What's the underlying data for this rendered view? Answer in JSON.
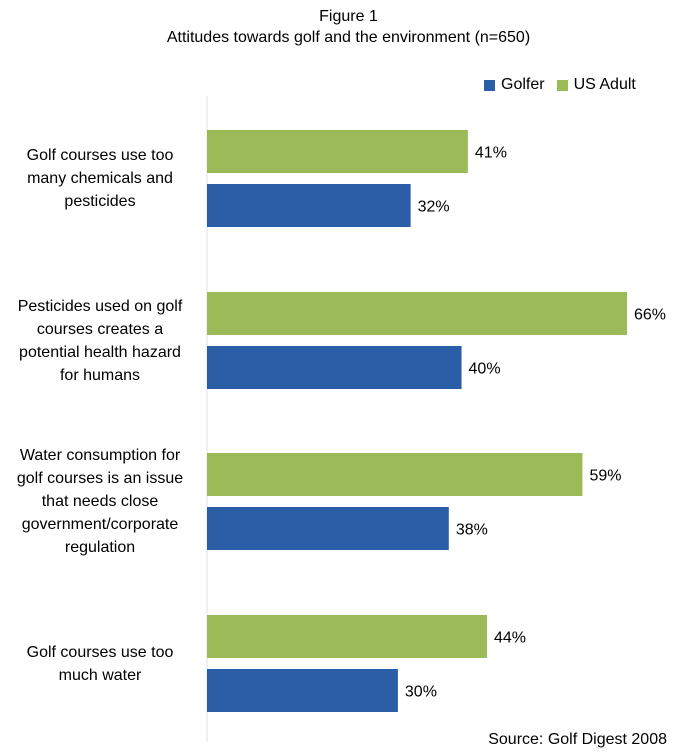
{
  "figure_label": "Figure 1",
  "title": "Attitudes towards golf and the environment (n=650)",
  "source": "Source: Golf Digest 2008",
  "colors": {
    "golfer": "#2b5ea6",
    "us_adult": "#9bbb59",
    "axis": "#e0e0e0"
  },
  "chart_data": {
    "type": "bar",
    "orientation": "horizontal",
    "title": "Attitudes towards golf and the environment (n=650)",
    "categories": [
      [
        "Golf courses use too",
        "many chemicals and",
        "pesticides"
      ],
      [
        "Pesticides used on golf",
        "courses creates a",
        "potential health hazard",
        "for humans"
      ],
      [
        "Water consumption for",
        "golf courses is an issue",
        "that needs close",
        "government/corporate",
        "regulation"
      ],
      [
        "Golf courses use too",
        "much water"
      ]
    ],
    "series": [
      {
        "name": "US Adult",
        "values": [
          41,
          66,
          59,
          44
        ],
        "labels": [
          "41%",
          "66%",
          "59%",
          "44%"
        ]
      },
      {
        "name": "Golfer",
        "values": [
          32,
          40,
          38,
          30
        ],
        "labels": [
          "32%",
          "40%",
          "38%",
          "30%"
        ]
      }
    ],
    "unit": "%",
    "legend": [
      "Golfer",
      "US Adult"
    ],
    "legend_position": "top-right",
    "xlim": [
      0,
      70
    ],
    "grid": false
  }
}
